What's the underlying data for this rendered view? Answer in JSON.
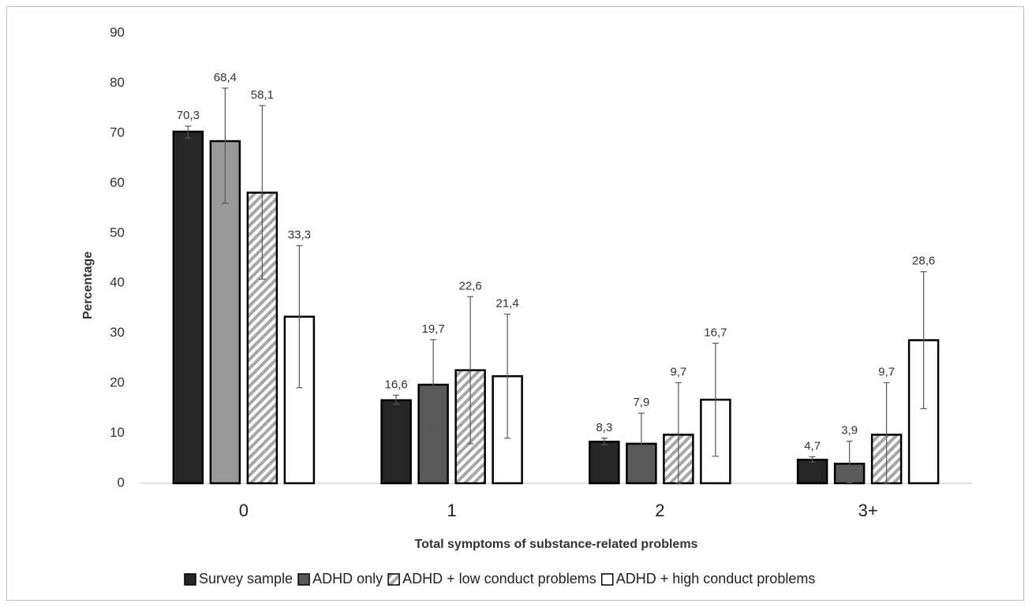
{
  "chart_data": {
    "type": "bar",
    "xlabel": "Total symptoms of substance-related problems",
    "ylabel": "Percentage",
    "ylim": [
      0,
      90
    ],
    "yticks": [
      "0",
      "10",
      "20",
      "30",
      "40",
      "50",
      "60",
      "70",
      "80",
      "90"
    ],
    "categories": [
      "0",
      "1",
      "2",
      "3+"
    ],
    "grid": false,
    "legend_position": "bottom",
    "series": [
      {
        "name": "Survey sample",
        "values": [
          70.3,
          16.6,
          8.3,
          4.7
        ],
        "labels": [
          "70,3",
          "16,6",
          "8,3",
          "4,7"
        ],
        "error_low": [
          69.0,
          15.8,
          7.7,
          4.2
        ],
        "error_high": [
          71.4,
          17.6,
          9.0,
          5.3
        ],
        "fill": "#262626",
        "pattern": "solid"
      },
      {
        "name": "ADHD only",
        "values": [
          68.4,
          19.7,
          7.9,
          3.9
        ],
        "labels": [
          "68,4",
          "19,7",
          "7,9",
          "3,9"
        ],
        "error_low": [
          56.0,
          10.8,
          1.7,
          0.1
        ],
        "error_high": [
          79.0,
          28.7,
          14.0,
          8.4
        ],
        "fill_by_category": [
          "#999999",
          "#595959",
          "#595959",
          "#595959"
        ],
        "pattern": "solid"
      },
      {
        "name": "ADHD + low conduct problems",
        "values": [
          58.1,
          22.6,
          9.7,
          9.7
        ],
        "labels": [
          "58,1",
          "22,6",
          "9,7",
          "9,7"
        ],
        "error_low": [
          40.8,
          7.9,
          0.0,
          0.0
        ],
        "error_high": [
          75.5,
          37.3,
          20.1,
          20.1
        ],
        "fill": "#a6a6a6",
        "pattern": "diagonal-hatch"
      },
      {
        "name": "ADHD + high conduct problems",
        "values": [
          33.3,
          21.4,
          16.7,
          28.6
        ],
        "labels": [
          "33,3",
          "21,4",
          "16,7",
          "28,6"
        ],
        "error_low": [
          19.1,
          9.0,
          5.4,
          14.9
        ],
        "error_high": [
          47.5,
          33.8,
          28.0,
          42.3
        ],
        "fill": "#ffffff",
        "pattern": "solid"
      }
    ]
  }
}
